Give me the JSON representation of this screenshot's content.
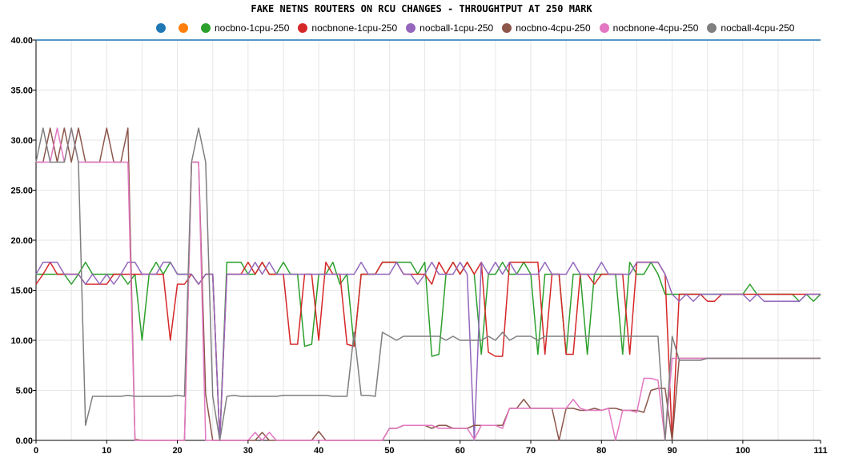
{
  "chart_data": {
    "type": "line",
    "title": "FAKE NETNS ROUTERS ON RCU CHANGES - THROUGHTPUT AT 250 MARK",
    "xlabel": "",
    "ylabel": "",
    "xlim": [
      0,
      111
    ],
    "ylim": [
      0,
      40
    ],
    "x_ticks": [
      0,
      10,
      20,
      30,
      40,
      50,
      60,
      70,
      80,
      90,
      100,
      111
    ],
    "y_ticks": [
      "0.00",
      "5.00",
      "10.00",
      "15.00",
      "20.00",
      "25.00",
      "30.00",
      "35.00",
      "40.00"
    ],
    "grid": true,
    "legend": "top",
    "threshold_line": {
      "value": 40,
      "color": "#1f77b4"
    },
    "series": [
      {
        "name": "",
        "color": "#1f77b4",
        "values": []
      },
      {
        "name": "",
        "color": "#ff7f0e",
        "values": []
      },
      {
        "name": "nocbno-1cpu-250",
        "color": "#2ca02c",
        "values": [
          16.6,
          16.6,
          16.6,
          16.6,
          16.6,
          15.6,
          16.6,
          17.8,
          16.6,
          16.6,
          16.6,
          16.6,
          16.6,
          15.6,
          16.6,
          10.0,
          16.6,
          17.8,
          16.6,
          17.8,
          16.6,
          16.6,
          16.6,
          15.6,
          16.6,
          16.6,
          0.0,
          17.8,
          17.8,
          17.8,
          16.6,
          16.6,
          17.8,
          16.6,
          16.6,
          17.8,
          16.6,
          16.6,
          9.4,
          9.6,
          16.6,
          16.6,
          17.8,
          15.6,
          16.6,
          9.4,
          16.6,
          16.6,
          16.6,
          17.8,
          17.8,
          17.8,
          17.8,
          17.8,
          16.6,
          17.8,
          8.4,
          8.6,
          16.6,
          17.8,
          16.6,
          17.8,
          16.6,
          8.6,
          16.6,
          16.6,
          17.8,
          16.6,
          16.6,
          17.8,
          16.6,
          8.6,
          16.6,
          16.6,
          16.6,
          8.6,
          16.6,
          16.6,
          8.6,
          16.6,
          16.6,
          16.6,
          16.6,
          8.6,
          17.8,
          16.6,
          16.6,
          17.8,
          16.6,
          14.6,
          14.6,
          14.6,
          14.6,
          14.6,
          14.6,
          14.6,
          14.6,
          14.6,
          14.6,
          14.6,
          14.6,
          15.6,
          14.6,
          14.6,
          14.6,
          14.6,
          14.6,
          14.6,
          13.9,
          14.6,
          13.9,
          14.6
        ]
      },
      {
        "name": "nocbnone-1cpu-250",
        "color": "#d62728",
        "values": [
          15.6,
          16.6,
          17.8,
          16.6,
          16.6,
          16.6,
          16.6,
          15.6,
          15.6,
          15.6,
          15.6,
          16.6,
          16.6,
          16.6,
          16.6,
          16.6,
          16.6,
          16.6,
          16.6,
          10.0,
          15.6,
          15.6,
          16.6,
          15.6,
          16.6,
          16.6,
          0.0,
          16.6,
          16.6,
          16.6,
          17.8,
          16.6,
          17.8,
          16.6,
          16.6,
          16.6,
          9.6,
          9.6,
          16.6,
          16.6,
          10.0,
          17.8,
          16.6,
          16.6,
          9.6,
          9.4,
          16.6,
          16.6,
          16.6,
          17.8,
          17.8,
          17.8,
          16.6,
          16.6,
          16.6,
          16.6,
          15.6,
          17.8,
          16.6,
          17.8,
          16.6,
          17.8,
          16.6,
          17.8,
          8.8,
          8.4,
          8.4,
          17.8,
          17.8,
          17.8,
          17.8,
          17.8,
          8.6,
          16.6,
          16.6,
          8.6,
          8.6,
          16.6,
          16.6,
          15.6,
          16.6,
          16.6,
          16.6,
          16.6,
          8.6,
          17.8,
          17.8,
          17.8,
          17.8,
          16.6,
          0.0,
          14.6,
          14.6,
          14.6,
          14.6,
          13.9,
          13.9,
          14.6,
          14.6,
          14.6,
          14.6,
          14.6,
          14.6,
          14.6,
          14.6,
          14.6,
          14.6,
          14.6,
          14.6,
          14.6,
          14.6,
          14.6
        ]
      },
      {
        "name": "nocball-1cpu-250",
        "color": "#9467bd",
        "values": [
          16.6,
          17.8,
          17.8,
          17.8,
          16.6,
          16.6,
          16.6,
          15.6,
          16.6,
          15.6,
          16.6,
          15.6,
          16.6,
          17.8,
          17.8,
          16.6,
          16.6,
          16.6,
          17.8,
          17.8,
          16.6,
          16.6,
          16.6,
          15.6,
          16.6,
          16.6,
          0.0,
          16.6,
          16.6,
          16.6,
          16.6,
          17.8,
          16.6,
          17.8,
          16.6,
          16.6,
          16.6,
          16.6,
          16.6,
          16.6,
          16.6,
          16.6,
          16.6,
          16.6,
          16.6,
          16.6,
          17.8,
          16.6,
          16.6,
          16.6,
          16.6,
          17.8,
          16.6,
          16.6,
          15.6,
          16.6,
          17.8,
          16.6,
          16.6,
          16.6,
          17.8,
          16.6,
          0.0,
          17.8,
          16.6,
          17.8,
          16.6,
          17.8,
          16.6,
          16.6,
          16.6,
          16.6,
          17.8,
          16.6,
          16.6,
          16.6,
          17.8,
          16.6,
          16.6,
          16.6,
          17.8,
          16.6,
          16.6,
          16.6,
          16.6,
          17.8,
          17.8,
          17.8,
          17.8,
          16.6,
          14.6,
          13.9,
          14.6,
          13.9,
          14.6,
          14.6,
          14.6,
          14.6,
          14.6,
          14.6,
          14.6,
          13.9,
          14.6,
          13.9,
          13.9,
          13.9,
          13.9,
          13.9,
          13.9,
          14.6,
          14.6,
          14.6
        ]
      },
      {
        "name": "nocbno-4cpu-250",
        "color": "#8c564b",
        "values": [
          27.8,
          27.8,
          31.2,
          27.8,
          31.2,
          27.8,
          31.2,
          27.8,
          27.8,
          27.8,
          31.2,
          27.8,
          27.8,
          31.2,
          0.1,
          0.0,
          0.0,
          0.0,
          0.0,
          0.0,
          0.0,
          0.0,
          27.8,
          27.8,
          4.6,
          0.0,
          0.0,
          0.0,
          0.0,
          0.0,
          0.0,
          0.0,
          0.8,
          0.0,
          0.0,
          0.0,
          0.0,
          0.0,
          0.0,
          0.0,
          0.9,
          0.0,
          0.0,
          0.0,
          0.0,
          0.0,
          0.0,
          0.0,
          0.0,
          0.0,
          1.2,
          1.2,
          1.5,
          1.5,
          1.5,
          1.5,
          1.2,
          1.5,
          1.5,
          1.2,
          1.2,
          1.2,
          1.5,
          1.5,
          1.5,
          1.5,
          1.5,
          3.2,
          3.2,
          4.1,
          3.2,
          3.2,
          3.2,
          3.2,
          0.0,
          3.2,
          3.2,
          3.0,
          3.0,
          3.2,
          3.0,
          3.2,
          3.2,
          3.0,
          3.0,
          3.0,
          2.8,
          5.0,
          5.2,
          5.2,
          0.0,
          8.2,
          8.2,
          8.2,
          8.2,
          8.2,
          8.2,
          8.2,
          8.2,
          8.2,
          8.2,
          8.2,
          8.2,
          8.2,
          8.2,
          8.2,
          8.2,
          8.2,
          8.2,
          8.2,
          8.2,
          8.2
        ]
      },
      {
        "name": "nocbnone-4cpu-250",
        "color": "#e377c2",
        "values": [
          27.8,
          27.8,
          27.8,
          31.2,
          27.8,
          31.2,
          27.8,
          27.8,
          27.8,
          27.8,
          27.8,
          27.8,
          27.8,
          27.8,
          0.0,
          0.0,
          0.0,
          0.0,
          0.0,
          0.0,
          0.0,
          0.0,
          27.8,
          27.8,
          0.0,
          0.0,
          0.0,
          0.0,
          0.0,
          0.0,
          0.0,
          0.8,
          0.0,
          0.8,
          0.0,
          0.0,
          0.0,
          0.0,
          0.0,
          0.0,
          0.0,
          0.0,
          0.0,
          0.0,
          0.0,
          0.0,
          0.0,
          0.0,
          0.0,
          0.0,
          1.2,
          1.2,
          1.5,
          1.5,
          1.5,
          1.5,
          1.5,
          1.2,
          1.2,
          1.2,
          1.2,
          1.2,
          0.1,
          1.5,
          1.5,
          1.5,
          1.2,
          3.2,
          3.2,
          3.2,
          3.2,
          3.2,
          3.2,
          3.2,
          3.2,
          3.2,
          4.1,
          3.2,
          3.0,
          3.0,
          3.0,
          3.2,
          0.0,
          3.0,
          3.0,
          2.8,
          6.2,
          6.2,
          6.0,
          0.0,
          8.2,
          8.2,
          8.2,
          8.2,
          8.2,
          8.2,
          8.2,
          8.2,
          8.2,
          8.2,
          8.2,
          8.2,
          8.2,
          8.2,
          8.2,
          8.2,
          8.2,
          8.2,
          8.2,
          8.2,
          8.2,
          8.2
        ]
      },
      {
        "name": "nocball-4cpu-250",
        "color": "#7f7f7f",
        "values": [
          27.8,
          31.2,
          27.8,
          27.8,
          27.8,
          31.2,
          27.8,
          1.5,
          4.4,
          4.4,
          4.4,
          4.4,
          4.4,
          4.5,
          4.4,
          4.4,
          4.4,
          4.4,
          4.4,
          4.4,
          4.5,
          4.4,
          27.8,
          31.2,
          27.8,
          4.4,
          0.0,
          4.4,
          4.5,
          4.4,
          4.4,
          4.4,
          4.4,
          4.4,
          4.4,
          4.5,
          4.5,
          4.5,
          4.5,
          4.5,
          4.5,
          4.5,
          4.4,
          4.4,
          4.4,
          10.8,
          4.5,
          4.5,
          4.4,
          10.8,
          10.4,
          10.0,
          10.4,
          10.4,
          10.4,
          10.4,
          10.4,
          10.4,
          10.0,
          10.4,
          10.0,
          10.0,
          10.0,
          10.0,
          10.4,
          10.0,
          10.8,
          10.0,
          10.4,
          10.4,
          10.4,
          10.0,
          10.4,
          10.4,
          10.4,
          10.4,
          10.4,
          10.4,
          10.4,
          10.4,
          10.4,
          10.4,
          10.4,
          10.4,
          10.4,
          10.4,
          10.4,
          10.4,
          10.4,
          0.0,
          10.4,
          8.0,
          8.0,
          8.0,
          8.0,
          8.2,
          8.2,
          8.2,
          8.2,
          8.2,
          8.2,
          8.2,
          8.2,
          8.2,
          8.2,
          8.2,
          8.2,
          8.2,
          8.2,
          8.2,
          8.2,
          8.2
        ]
      }
    ]
  }
}
